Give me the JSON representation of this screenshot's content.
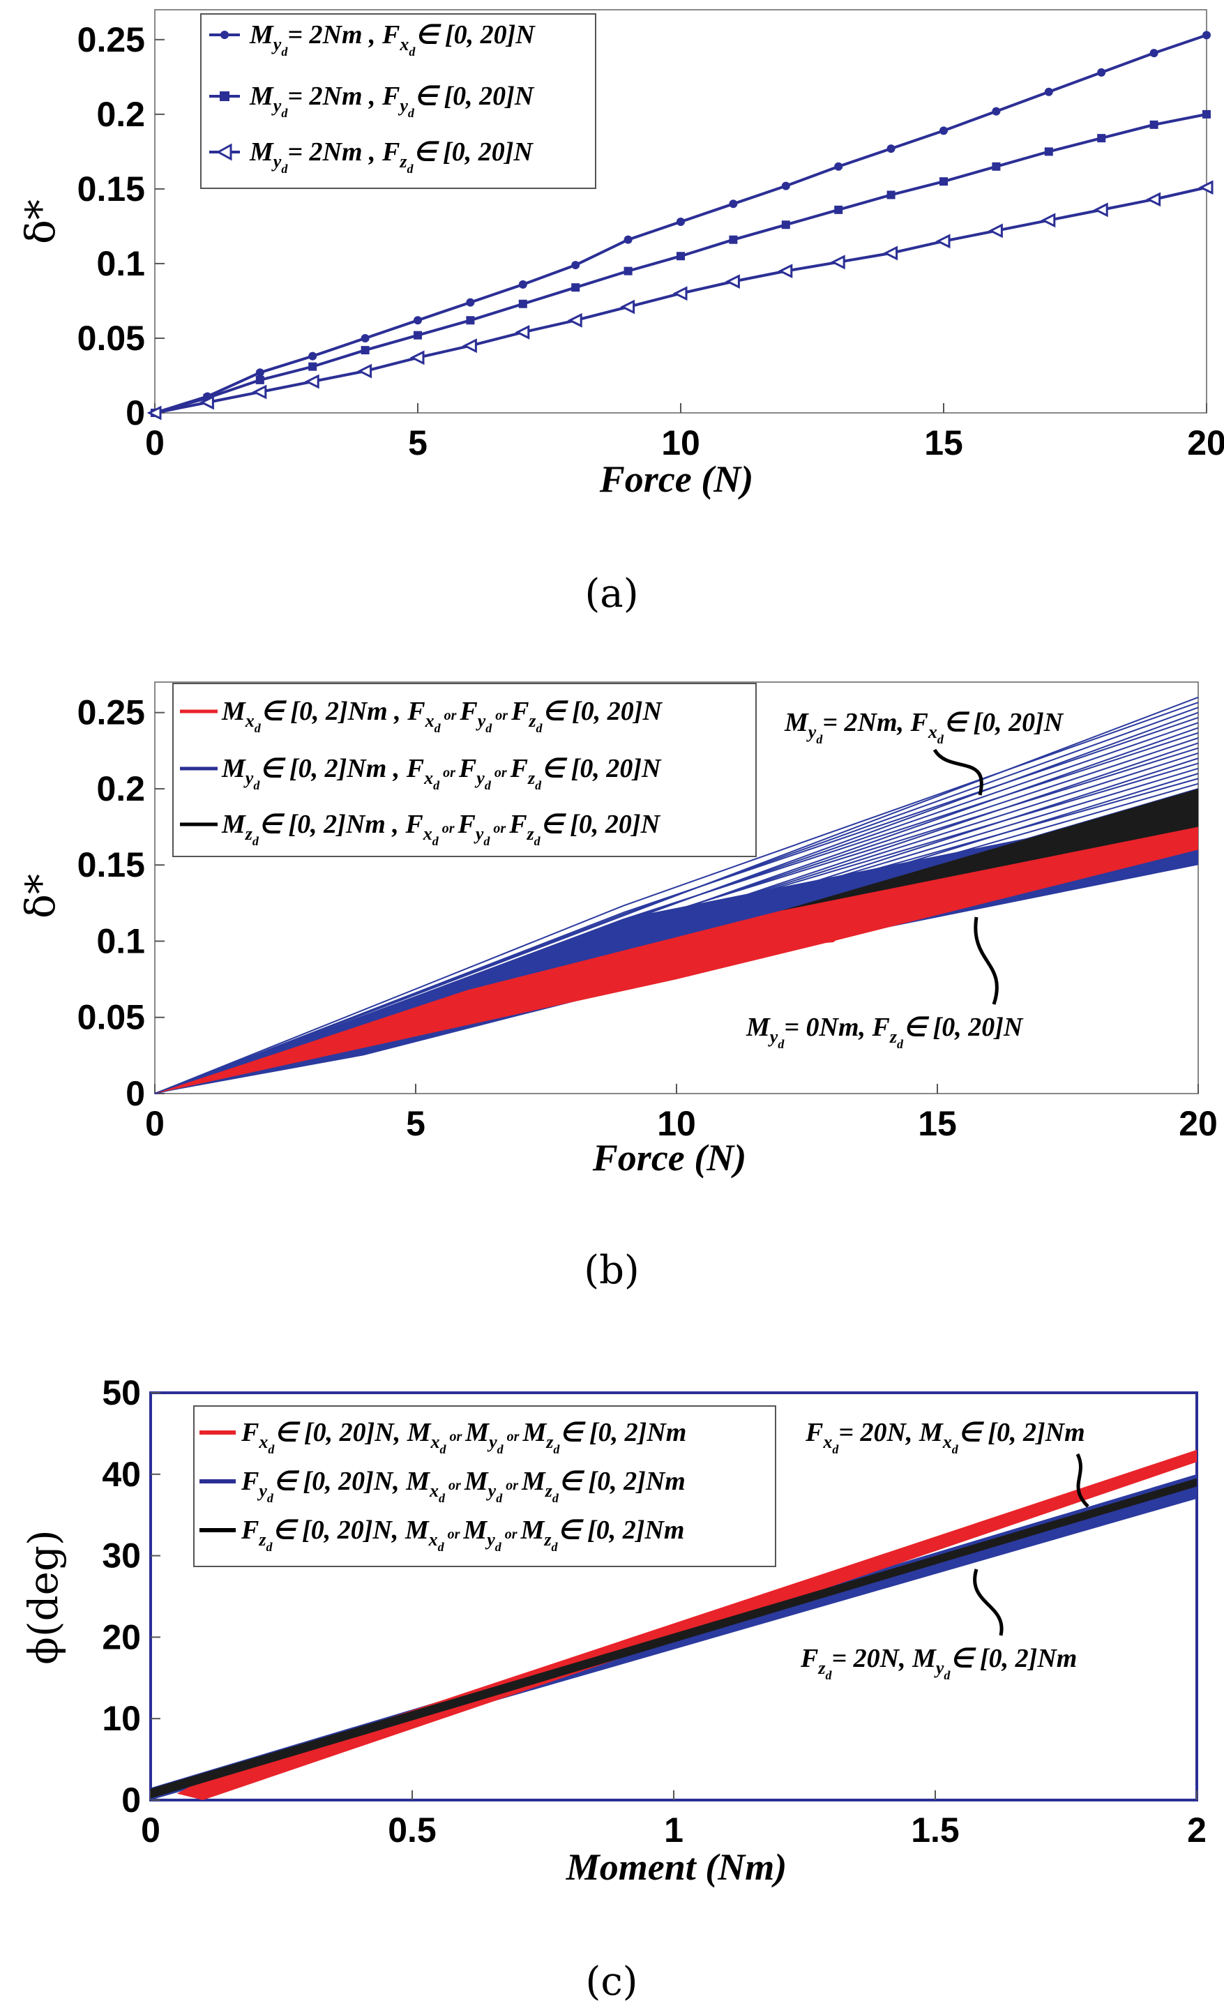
{
  "chart_data": [
    {
      "id": "a",
      "type": "line",
      "caption": "(a)",
      "xlabel": "Force (N)",
      "ylabel": "δ*",
      "xlim": [
        0,
        20
      ],
      "ylim": [
        0,
        0.27
      ],
      "xticks": [
        "0",
        "5",
        "10",
        "15",
        "20"
      ],
      "yticks": [
        "0",
        "0.05",
        "0.1",
        "0.15",
        "0.2",
        "0.25"
      ],
      "series": [
        {
          "name": "M_yd = 2Nm , F_xd ∈ [0, 20]N",
          "legend": "= 2Nm , F",
          "legend2": "∈ [0, 20]N",
          "color": "#2b2f95",
          "marker": "dot",
          "x": [
            0,
            1,
            2,
            3,
            4,
            5,
            6,
            7,
            8,
            9,
            10,
            11,
            12,
            13,
            14,
            15,
            16,
            17,
            18,
            19,
            20
          ],
          "values": [
            0,
            0.011,
            0.027,
            0.038,
            0.05,
            0.062,
            0.074,
            0.086,
            0.099,
            0.116,
            0.128,
            0.14,
            0.152,
            0.165,
            0.177,
            0.189,
            0.202,
            0.215,
            0.228,
            0.241,
            0.253
          ]
        },
        {
          "name": "M_yd = 2Nm , F_yd ∈ [0, 20]N",
          "legend": "= 2Nm , F",
          "legend2": "∈ [0, 20]N",
          "color": "#2b2f95",
          "marker": "square",
          "x": [
            0,
            1,
            2,
            3,
            4,
            5,
            6,
            7,
            8,
            9,
            10,
            11,
            12,
            13,
            14,
            15,
            16,
            17,
            18,
            19,
            20
          ],
          "values": [
            0,
            0.01,
            0.022,
            0.031,
            0.042,
            0.052,
            0.062,
            0.073,
            0.084,
            0.095,
            0.105,
            0.116,
            0.126,
            0.136,
            0.146,
            0.155,
            0.165,
            0.175,
            0.184,
            0.193,
            0.2
          ]
        },
        {
          "name": "M_yd = 2Nm , F_zd ∈ [0, 20]N",
          "legend": "= 2Nm , F",
          "legend2": "∈ [0, 20]N",
          "color": "#2b2f95",
          "marker": "triangle",
          "x": [
            0,
            1,
            2,
            3,
            4,
            5,
            6,
            7,
            8,
            9,
            10,
            11,
            12,
            13,
            14,
            15,
            16,
            17,
            18,
            19,
            20
          ],
          "values": [
            0,
            0.007,
            0.014,
            0.021,
            0.028,
            0.037,
            0.045,
            0.054,
            0.062,
            0.071,
            0.08,
            0.088,
            0.095,
            0.101,
            0.107,
            0.115,
            0.122,
            0.129,
            0.136,
            0.143,
            0.151
          ]
        }
      ],
      "legend_sub": [
        "x",
        "y",
        "z"
      ]
    },
    {
      "id": "b",
      "type": "line",
      "caption": "(b)",
      "xlabel": "Force (N)",
      "ylabel": "δ*",
      "xlim": [
        0,
        20
      ],
      "ylim": [
        0,
        0.27
      ],
      "xticks": [
        "0",
        "5",
        "10",
        "15",
        "20"
      ],
      "yticks": [
        "0",
        "0.05",
        "0.1",
        "0.15",
        "0.2",
        "0.25"
      ],
      "legend": [
        {
          "sym": "M",
          "sub": "x",
          "text": "∈ [0, 2]Nm , F",
          "or1": "or",
          "or2": "or",
          "tail": "∈ [0, 20]N",
          "color": "#e8232a"
        },
        {
          "sym": "M",
          "sub": "y",
          "text": "∈ [0, 2]Nm , F",
          "or1": "or",
          "or2": "or",
          "tail": "∈ [0, 20]N",
          "color": "#2b2f95"
        },
        {
          "sym": "M",
          "sub": "z",
          "text": "∈ [0, 2]Nm , F",
          "or1": "or",
          "or2": "or",
          "tail": "∈ [0, 20]N",
          "color": "#000000"
        }
      ],
      "bands": [
        {
          "name": "blue",
          "color": "#2b3a9e",
          "lower": [
            0.16,
            0.15
          ],
          "upper": [
            0.26,
            0.26
          ]
        },
        {
          "name": "black",
          "color": "#1b1b1b",
          "lower": [
            0.165
          ],
          "upper": [
            0.2
          ]
        },
        {
          "name": "red",
          "color": "#e8232a",
          "lower": [
            0.16
          ],
          "upper": [
            0.175
          ]
        }
      ],
      "annotations": [
        {
          "text": "= 2Nm, F",
          "sym": "M",
          "sub": "y",
          "sym2sub": "x",
          "tail": "∈ [0, 20]N"
        },
        {
          "text": "= 0Nm, F",
          "sym": "M",
          "sub": "y",
          "sym2sub": "z",
          "tail": "∈ [0, 20]N"
        }
      ]
    },
    {
      "id": "c",
      "type": "line",
      "caption": "(c)",
      "xlabel": "Moment (Nm)",
      "ylabel": "ϕ(deg)",
      "xlim": [
        0,
        2
      ],
      "ylim": [
        0,
        50
      ],
      "xticks": [
        "0",
        "0.5",
        "1",
        "1.5",
        "2"
      ],
      "yticks": [
        "0",
        "10",
        "20",
        "30",
        "40",
        "50"
      ],
      "legend": [
        {
          "sym": "F",
          "sub": "x",
          "text": "∈ [0, 20]N, M",
          "tail": "∈ [0, 2]Nm",
          "color": "#e8232a"
        },
        {
          "sym": "F",
          "sub": "y",
          "text": "∈ [0, 20]N, M",
          "tail": "∈ [0, 2]Nm",
          "color": "#2b2f95"
        },
        {
          "sym": "F",
          "sub": "z",
          "text": "∈ [0, 20]N, M",
          "tail": "∈ [0, 2]Nm",
          "color": "#000000"
        }
      ],
      "bands": [
        {
          "name": "blue",
          "color": "#2b3a9e",
          "end_low": 37,
          "end_high": 40
        },
        {
          "name": "red",
          "color": "#e8232a",
          "end_low": 41.5,
          "end_high": 43
        },
        {
          "name": "black",
          "color": "#1b1b1b",
          "end_low": 38.5,
          "end_high": 39.5
        }
      ],
      "annotations": [
        {
          "text": "= 20N, M",
          "sym": "F",
          "sub": "x",
          "sym2sub": "x",
          "tail": "∈ [0, 2]Nm"
        },
        {
          "text": "= 20N, M",
          "sym": "F",
          "sub": "z",
          "sym2sub": "y",
          "tail": "∈ [0, 2]Nm"
        }
      ]
    }
  ]
}
